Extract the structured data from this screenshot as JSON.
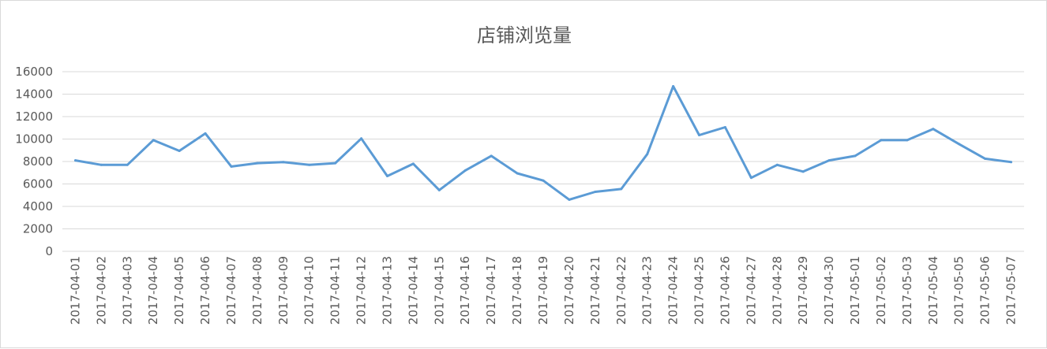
{
  "chart_data": {
    "type": "line",
    "title": "店铺浏览量",
    "xlabel": "",
    "ylabel": "",
    "ylim": [
      0,
      16000
    ],
    "yticks": [
      0,
      2000,
      4000,
      6000,
      8000,
      10000,
      12000,
      14000,
      16000
    ],
    "grid": true,
    "legend": "none",
    "colors": {
      "series": "#5b9bd5",
      "grid": "#d9d9d9",
      "text": "#595959"
    },
    "categories": [
      "2017-04-01",
      "2017-04-02",
      "2017-04-03",
      "2017-04-04",
      "2017-04-05",
      "2017-04-06",
      "2017-04-07",
      "2017-04-08",
      "2017-04-09",
      "2017-04-10",
      "2017-04-11",
      "2017-04-12",
      "2017-04-13",
      "2017-04-14",
      "2017-04-15",
      "2017-04-16",
      "2017-04-17",
      "2017-04-18",
      "2017-04-19",
      "2017-04-20",
      "2017-04-21",
      "2017-04-22",
      "2017-04-23",
      "2017-04-24",
      "2017-04-25",
      "2017-04-26",
      "2017-04-27",
      "2017-04-28",
      "2017-04-29",
      "2017-04-30",
      "2017-05-01",
      "2017-05-02",
      "2017-05-03",
      "2017-05-04",
      "2017-05-05",
      "2017-05-06",
      "2017-05-07"
    ],
    "series": [
      {
        "values": [
          8100,
          7700,
          7700,
          9900,
          8950,
          10500,
          7550,
          7850,
          7950,
          7700,
          7850,
          10050,
          6700,
          7800,
          5450,
          7200,
          8500,
          6950,
          6300,
          4600,
          5300,
          5550,
          8650,
          14700,
          10350,
          11050,
          6550,
          7700,
          7100,
          8100,
          8500,
          9900,
          9900,
          10900,
          9550,
          8250,
          7950
        ]
      }
    ]
  }
}
